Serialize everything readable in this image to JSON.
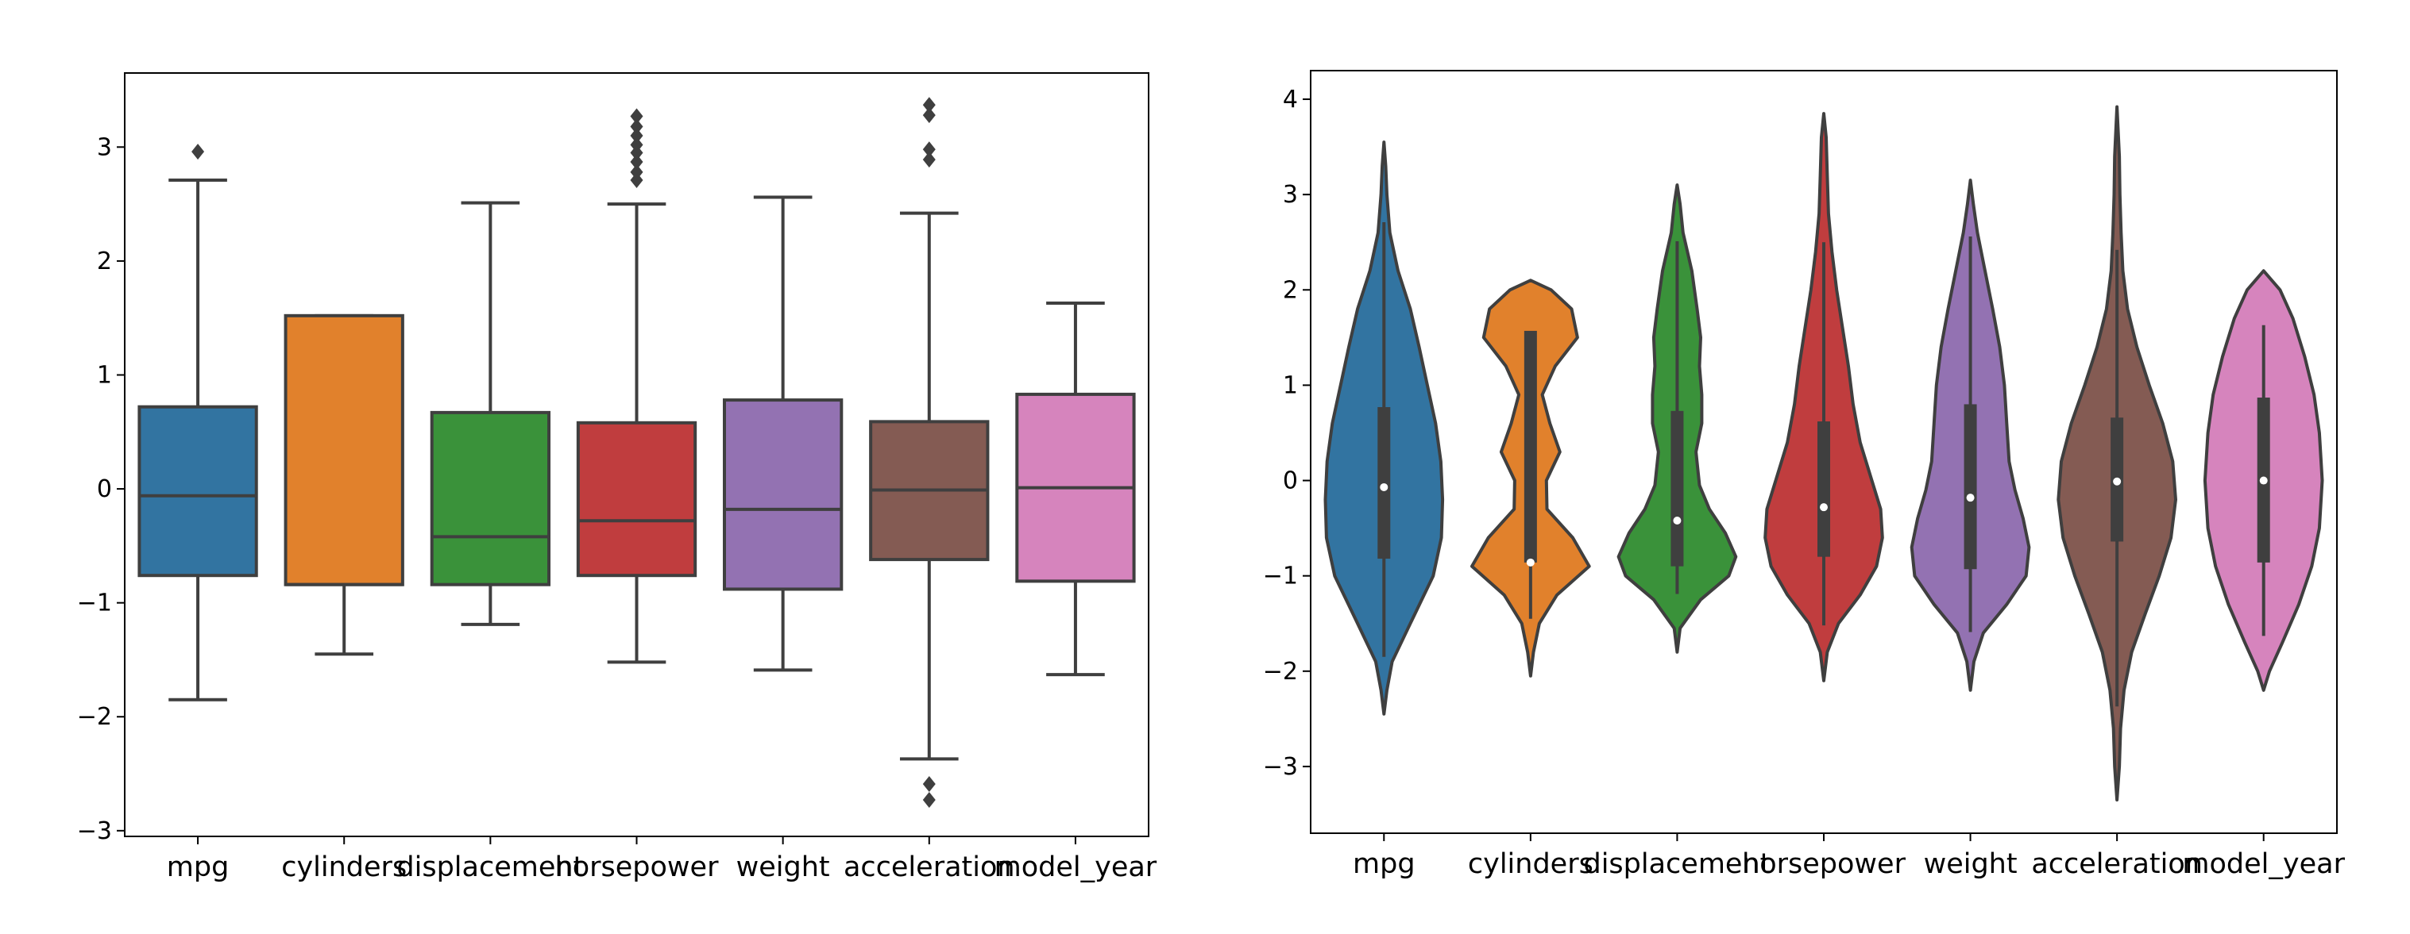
{
  "chart_data": [
    {
      "type": "box",
      "categories": [
        "mpg",
        "cylinders",
        "displacement",
        "horsepower",
        "weight",
        "acceleration",
        "model_year"
      ],
      "colors": [
        "#3274a1",
        "#e1812c",
        "#3a923a",
        "#c03d3e",
        "#9372b2",
        "#845b53",
        "#d684bd"
      ],
      "ylim": [
        -3.05,
        3.65
      ],
      "yticks": [
        -3,
        -2,
        -1,
        0,
        1,
        2,
        3
      ],
      "ytick_labels": [
        "−3",
        "−2",
        "−1",
        "0",
        "1",
        "2",
        "3"
      ],
      "boxes": [
        {
          "whislo": -1.85,
          "q1": -0.76,
          "med": -0.06,
          "q3": 0.72,
          "whishi": 2.71,
          "fliers": [
            2.96
          ]
        },
        {
          "whislo": -1.45,
          "q1": -0.84,
          "med": -0.84,
          "q3": 1.52,
          "whishi": 1.52,
          "fliers": []
        },
        {
          "whislo": -1.19,
          "q1": -0.84,
          "med": -0.42,
          "q3": 0.67,
          "whishi": 2.51,
          "fliers": []
        },
        {
          "whislo": -1.52,
          "q1": -0.76,
          "med": -0.28,
          "q3": 0.58,
          "whishi": 2.5,
          "fliers": [
            2.71,
            2.78,
            2.87,
            2.95,
            3.02,
            3.1,
            3.18,
            3.27
          ]
        },
        {
          "whislo": -1.59,
          "q1": -0.88,
          "med": -0.18,
          "q3": 0.78,
          "whishi": 2.56,
          "fliers": []
        },
        {
          "whislo": -2.37,
          "q1": -0.62,
          "med": -0.01,
          "q3": 0.59,
          "whishi": 2.42,
          "fliers": [
            -2.59,
            -2.73,
            2.89,
            2.98,
            3.28,
            3.37
          ]
        },
        {
          "whislo": -1.63,
          "q1": -0.81,
          "med": 0.01,
          "q3": 0.83,
          "whishi": 1.63,
          "fliers": []
        }
      ]
    },
    {
      "type": "violin",
      "categories": [
        "mpg",
        "cylinders",
        "displacement",
        "horsepower",
        "weight",
        "acceleration",
        "model_year"
      ],
      "colors": [
        "#3274a1",
        "#e1812c",
        "#3a923a",
        "#c03d3e",
        "#9372b2",
        "#845b53",
        "#d684bd"
      ],
      "ylim": [
        -3.7,
        4.3
      ],
      "yticks": [
        -3,
        -2,
        -1,
        0,
        1,
        2,
        3,
        4
      ],
      "ytick_labels": [
        "−3",
        "−2",
        "−1",
        "0",
        "1",
        "2",
        "3",
        "4"
      ],
      "violins": [
        {
          "ymin": -2.45,
          "ymax": 3.55,
          "q1": -0.82,
          "med": -0.07,
          "q3": 0.77,
          "wlo": -1.85,
          "whi": 2.71,
          "profile": [
            [
              -2.45,
              0
            ],
            [
              -2.2,
              0.05
            ],
            [
              -1.9,
              0.14
            ],
            [
              -1.5,
              0.45
            ],
            [
              -1.0,
              0.84
            ],
            [
              -0.6,
              0.98
            ],
            [
              -0.2,
              1.0
            ],
            [
              0.2,
              0.97
            ],
            [
              0.6,
              0.88
            ],
            [
              1.0,
              0.74
            ],
            [
              1.4,
              0.6
            ],
            [
              1.8,
              0.45
            ],
            [
              2.2,
              0.24
            ],
            [
              2.6,
              0.1
            ],
            [
              3.0,
              0.05
            ],
            [
              3.3,
              0.03
            ],
            [
              3.55,
              0
            ]
          ]
        },
        {
          "ymin": -2.05,
          "ymax": 2.1,
          "q1": -0.86,
          "med": -0.86,
          "q3": 1.57,
          "wlo": -1.45,
          "whi": 1.57,
          "profile": [
            [
              -2.05,
              0
            ],
            [
              -1.8,
              0.05
            ],
            [
              -1.5,
              0.15
            ],
            [
              -1.2,
              0.45
            ],
            [
              -0.9,
              1.0
            ],
            [
              -0.6,
              0.72
            ],
            [
              -0.3,
              0.28
            ],
            [
              0.0,
              0.27
            ],
            [
              0.3,
              0.5
            ],
            [
              0.6,
              0.33
            ],
            [
              0.9,
              0.2
            ],
            [
              1.2,
              0.42
            ],
            [
              1.5,
              0.8
            ],
            [
              1.8,
              0.7
            ],
            [
              2.0,
              0.35
            ],
            [
              2.1,
              0
            ]
          ]
        },
        {
          "ymin": -1.8,
          "ymax": 3.1,
          "q1": -0.9,
          "med": -0.42,
          "q3": 0.73,
          "wlo": -1.19,
          "whi": 2.51,
          "profile": [
            [
              -1.8,
              0
            ],
            [
              -1.55,
              0.05
            ],
            [
              -1.25,
              0.4
            ],
            [
              -1.0,
              0.88
            ],
            [
              -0.8,
              1.0
            ],
            [
              -0.55,
              0.82
            ],
            [
              -0.3,
              0.55
            ],
            [
              -0.05,
              0.38
            ],
            [
              0.3,
              0.32
            ],
            [
              0.6,
              0.42
            ],
            [
              0.9,
              0.42
            ],
            [
              1.2,
              0.38
            ],
            [
              1.5,
              0.4
            ],
            [
              1.8,
              0.34
            ],
            [
              2.2,
              0.25
            ],
            [
              2.6,
              0.1
            ],
            [
              2.9,
              0.05
            ],
            [
              3.1,
              0
            ]
          ]
        },
        {
          "ymin": -2.1,
          "ymax": 3.85,
          "q1": -0.8,
          "med": -0.28,
          "q3": 0.62,
          "wlo": -1.52,
          "whi": 2.5,
          "profile": [
            [
              -2.1,
              0
            ],
            [
              -1.8,
              0.06
            ],
            [
              -1.5,
              0.25
            ],
            [
              -1.2,
              0.62
            ],
            [
              -0.9,
              0.9
            ],
            [
              -0.6,
              1.0
            ],
            [
              -0.3,
              0.97
            ],
            [
              0.0,
              0.82
            ],
            [
              0.4,
              0.62
            ],
            [
              0.8,
              0.5
            ],
            [
              1.2,
              0.42
            ],
            [
              1.6,
              0.32
            ],
            [
              2.0,
              0.22
            ],
            [
              2.4,
              0.14
            ],
            [
              2.8,
              0.08
            ],
            [
              3.2,
              0.06
            ],
            [
              3.6,
              0.04
            ],
            [
              3.85,
              0
            ]
          ]
        },
        {
          "ymin": -2.2,
          "ymax": 3.15,
          "q1": -0.93,
          "med": -0.18,
          "q3": 0.8,
          "wlo": -1.59,
          "whi": 2.56,
          "profile": [
            [
              -2.2,
              0
            ],
            [
              -1.9,
              0.06
            ],
            [
              -1.6,
              0.22
            ],
            [
              -1.3,
              0.62
            ],
            [
              -1.0,
              0.95
            ],
            [
              -0.7,
              1.0
            ],
            [
              -0.4,
              0.9
            ],
            [
              -0.1,
              0.76
            ],
            [
              0.2,
              0.66
            ],
            [
              0.6,
              0.62
            ],
            [
              1.0,
              0.58
            ],
            [
              1.4,
              0.5
            ],
            [
              1.8,
              0.38
            ],
            [
              2.2,
              0.25
            ],
            [
              2.6,
              0.12
            ],
            [
              2.9,
              0.05
            ],
            [
              3.15,
              0
            ]
          ]
        },
        {
          "ymin": -3.35,
          "ymax": 3.92,
          "q1": -0.64,
          "med": -0.01,
          "q3": 0.66,
          "wlo": -2.37,
          "whi": 2.42,
          "profile": [
            [
              -3.35,
              0
            ],
            [
              -3.0,
              0.04
            ],
            [
              -2.6,
              0.06
            ],
            [
              -2.2,
              0.12
            ],
            [
              -1.8,
              0.25
            ],
            [
              -1.4,
              0.48
            ],
            [
              -1.0,
              0.72
            ],
            [
              -0.6,
              0.92
            ],
            [
              -0.2,
              1.0
            ],
            [
              0.2,
              0.95
            ],
            [
              0.6,
              0.78
            ],
            [
              1.0,
              0.55
            ],
            [
              1.4,
              0.34
            ],
            [
              1.8,
              0.18
            ],
            [
              2.2,
              0.1
            ],
            [
              2.6,
              0.07
            ],
            [
              3.0,
              0.05
            ],
            [
              3.4,
              0.04
            ],
            [
              3.92,
              0
            ]
          ]
        },
        {
          "ymin": -2.2,
          "ymax": 2.2,
          "q1": -0.86,
          "med": 0.0,
          "q3": 0.87,
          "wlo": -1.63,
          "whi": 1.63,
          "profile": [
            [
              -2.2,
              0
            ],
            [
              -2.0,
              0.1
            ],
            [
              -1.7,
              0.32
            ],
            [
              -1.3,
              0.6
            ],
            [
              -0.9,
              0.82
            ],
            [
              -0.5,
              0.95
            ],
            [
              0.0,
              1.0
            ],
            [
              0.5,
              0.95
            ],
            [
              0.9,
              0.86
            ],
            [
              1.3,
              0.7
            ],
            [
              1.7,
              0.5
            ],
            [
              2.0,
              0.28
            ],
            [
              2.2,
              0
            ]
          ]
        }
      ]
    }
  ]
}
